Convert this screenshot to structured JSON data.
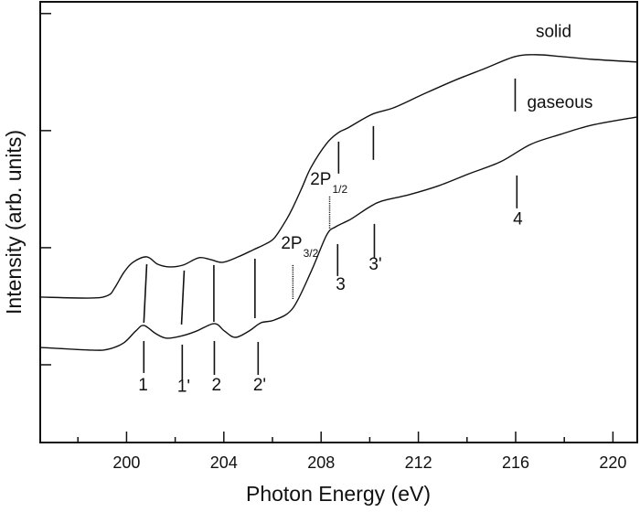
{
  "chart_data": {
    "type": "line",
    "title": "",
    "xlabel": "Photon Energy (eV)",
    "ylabel": "Intensity (arb. units)",
    "xlim": [
      196.45,
      221.0
    ],
    "ylim": [
      0.336,
      4.1
    ],
    "x_major_ticks": [
      200,
      204,
      208,
      212,
      216,
      220
    ],
    "x_minor_ticks": [
      198,
      202,
      206,
      210,
      214,
      218
    ],
    "y_ticks_unlabeled": [
      1,
      2,
      3,
      4
    ],
    "grid": false,
    "series": [
      {
        "name": "solid",
        "x": [
          196.47,
          198.57,
          199.25,
          199.51,
          199.89,
          200.26,
          200.83,
          201.28,
          201.77,
          202.33,
          202.97,
          203.46,
          203.95,
          204.59,
          205.23,
          205.71,
          206.09,
          206.58,
          206.84,
          207.22,
          207.59,
          208.23,
          208.72,
          209.1,
          210.11,
          210.98,
          212.22,
          213.5,
          214.74,
          215.98,
          216.88,
          217.86,
          219.14,
          221.0
        ],
        "y": [
          1.578,
          1.57,
          1.594,
          1.656,
          1.789,
          1.875,
          1.922,
          1.859,
          1.836,
          1.852,
          1.914,
          1.898,
          1.875,
          1.922,
          1.984,
          2.031,
          2.086,
          2.242,
          2.344,
          2.516,
          2.688,
          2.891,
          2.984,
          3.023,
          3.141,
          3.195,
          3.313,
          3.43,
          3.531,
          3.633,
          3.648,
          3.633,
          3.609,
          3.586
        ]
      },
      {
        "name": "gaseous",
        "x": [
          196.47,
          198.57,
          199.25,
          199.89,
          200.38,
          200.71,
          201.2,
          201.65,
          202.33,
          202.89,
          203.61,
          204.02,
          204.47,
          205.04,
          205.53,
          206.09,
          206.84,
          207.59,
          208.23,
          208.61,
          209.21,
          209.96,
          210.49,
          211.62,
          212.86,
          214.1,
          215.38,
          216.62,
          217.86,
          219.14,
          221.0
        ],
        "y": [
          1.148,
          1.125,
          1.133,
          1.188,
          1.289,
          1.336,
          1.266,
          1.227,
          1.25,
          1.289,
          1.352,
          1.289,
          1.234,
          1.289,
          1.359,
          1.383,
          1.484,
          1.797,
          2.109,
          2.18,
          2.242,
          2.344,
          2.398,
          2.453,
          2.531,
          2.633,
          2.734,
          2.883,
          2.969,
          3.047,
          3.117
        ]
      }
    ],
    "markers": [
      {
        "x1": 200.83,
        "y1": 1.859,
        "x2": 200.71,
        "y2": 1.359,
        "style": "solid"
      },
      {
        "x1": 200.71,
        "y1": 1.203,
        "x2": 200.71,
        "y2": 0.93,
        "style": "solid"
      },
      {
        "x1": 202.37,
        "y1": 1.805,
        "x2": 202.26,
        "y2": 1.344,
        "style": "solid"
      },
      {
        "x1": 202.29,
        "y1": 1.172,
        "x2": 202.29,
        "y2": 0.875,
        "style": "solid"
      },
      {
        "x1": 203.59,
        "y1": 1.852,
        "x2": 203.59,
        "y2": 1.367,
        "style": "solid"
      },
      {
        "x1": 203.61,
        "y1": 1.203,
        "x2": 203.61,
        "y2": 0.914,
        "style": "solid"
      },
      {
        "x1": 205.28,
        "y1": 1.906,
        "x2": 205.28,
        "y2": 1.398,
        "style": "solid"
      },
      {
        "x1": 205.41,
        "y1": 1.195,
        "x2": 205.41,
        "y2": 0.914,
        "style": "solid"
      },
      {
        "x1": 206.84,
        "y1": 1.852,
        "x2": 206.84,
        "y2": 1.5625,
        "style": "dotted"
      },
      {
        "x1": 208.35,
        "y1": 2.4375,
        "x2": 208.35,
        "y2": 2.164,
        "style": "dotted"
      },
      {
        "x1": 208.72,
        "y1": 2.906,
        "x2": 208.72,
        "y2": 2.633,
        "style": "solid"
      },
      {
        "x1": 208.68,
        "y1": 2.031,
        "x2": 208.68,
        "y2": 1.758,
        "style": "solid"
      },
      {
        "x1": 210.15,
        "y1": 3.039,
        "x2": 210.15,
        "y2": 2.75,
        "style": "solid"
      },
      {
        "x1": 210.19,
        "y1": 2.203,
        "x2": 210.19,
        "y2": 1.914,
        "style": "solid"
      },
      {
        "x1": 215.98,
        "y1": 3.445,
        "x2": 215.98,
        "y2": 3.164,
        "style": "solid"
      },
      {
        "x1": 216.05,
        "y1": 2.617,
        "x2": 216.05,
        "y2": 2.336,
        "style": "solid"
      }
    ],
    "annotations": [
      {
        "text": "1",
        "sub": "",
        "x": 200.68,
        "y": 0.78
      },
      {
        "text": "1'",
        "sub": "",
        "x": 202.35,
        "y": 0.77
      },
      {
        "text": "2",
        "sub": "",
        "x": 203.7,
        "y": 0.78
      },
      {
        "text": "2'",
        "sub": "",
        "x": 205.47,
        "y": 0.78
      },
      {
        "text": "2P",
        "sub": "3/2",
        "x": 206.35,
        "y": 1.99
      },
      {
        "text": "2P",
        "sub": "1/2",
        "x": 207.55,
        "y": 2.54
      },
      {
        "text": "3",
        "sub": "",
        "x": 208.8,
        "y": 1.64
      },
      {
        "text": "3'",
        "sub": "",
        "x": 210.23,
        "y": 1.81
      },
      {
        "text": "4",
        "sub": "",
        "x": 216.09,
        "y": 2.2
      },
      {
        "text": "solid",
        "sub": "",
        "x": 217.56,
        "y": 3.8
      },
      {
        "text": "gaseous",
        "sub": "",
        "x": 217.82,
        "y": 3.195
      }
    ]
  }
}
